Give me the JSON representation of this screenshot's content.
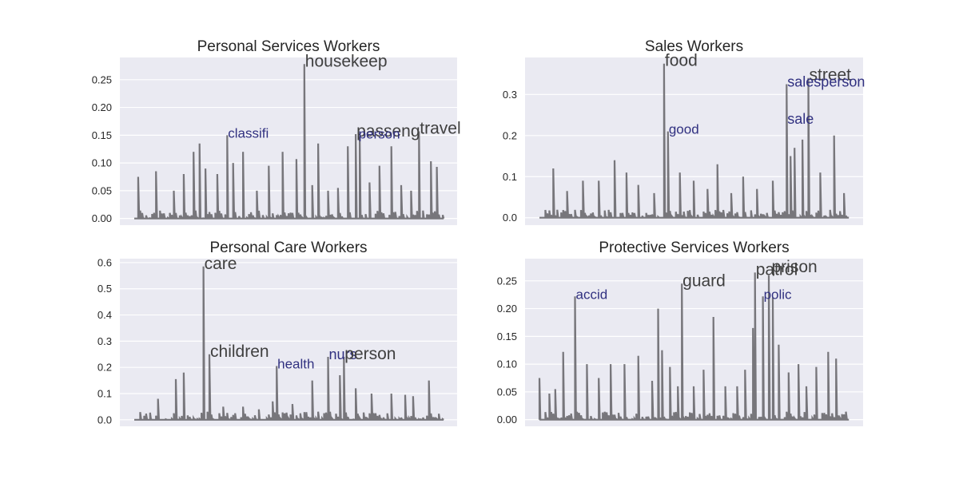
{
  "chart_data": [
    {
      "type": "line",
      "title": "Personal Services Workers",
      "xlabel": "",
      "ylabel": "",
      "ylim": [
        -0.012,
        0.29
      ],
      "yticks": [
        "0.00",
        "0.05",
        "0.10",
        "0.15",
        "0.20",
        "0.25"
      ],
      "series": [
        {
          "color": "#77767b"
        }
      ],
      "peaks": [
        {
          "x": 2,
          "y": 0.075
        },
        {
          "x": 11,
          "y": 0.085
        },
        {
          "x": 20,
          "y": 0.05
        },
        {
          "x": 25,
          "y": 0.08
        },
        {
          "x": 30,
          "y": 0.12
        },
        {
          "x": 33,
          "y": 0.135
        },
        {
          "x": 36,
          "y": 0.09
        },
        {
          "x": 42,
          "y": 0.08
        },
        {
          "x": 47,
          "y": 0.15
        },
        {
          "x": 50,
          "y": 0.1
        },
        {
          "x": 55,
          "y": 0.12
        },
        {
          "x": 62,
          "y": 0.05
        },
        {
          "x": 68,
          "y": 0.095
        },
        {
          "x": 75,
          "y": 0.12
        },
        {
          "x": 82,
          "y": 0.107
        },
        {
          "x": 86,
          "y": 0.278
        },
        {
          "x": 90,
          "y": 0.06
        },
        {
          "x": 93,
          "y": 0.135
        },
        {
          "x": 98,
          "y": 0.05
        },
        {
          "x": 103,
          "y": 0.055
        },
        {
          "x": 108,
          "y": 0.13
        },
        {
          "x": 112,
          "y": 0.152
        },
        {
          "x": 114,
          "y": 0.148
        },
        {
          "x": 119,
          "y": 0.065
        },
        {
          "x": 124,
          "y": 0.095
        },
        {
          "x": 130,
          "y": 0.13
        },
        {
          "x": 135,
          "y": 0.06
        },
        {
          "x": 140,
          "y": 0.05
        },
        {
          "x": 144,
          "y": 0.157
        },
        {
          "x": 150,
          "y": 0.103
        },
        {
          "x": 153,
          "y": 0.093
        }
      ],
      "annotations": [
        {
          "text": "housekeep",
          "x": 86,
          "y": 0.278,
          "style": "dark",
          "size": "large"
        },
        {
          "text": "classifi",
          "x": 47,
          "y": 0.15,
          "style": "blue",
          "size": "small"
        },
        {
          "text": "passeng",
          "x": 112,
          "y": 0.152,
          "style": "dark",
          "size": "large"
        },
        {
          "text": "person",
          "x": 113,
          "y": 0.148,
          "style": "blue",
          "size": "small"
        },
        {
          "text": "travel",
          "x": 144,
          "y": 0.157,
          "style": "dark",
          "size": "large"
        }
      ]
    },
    {
      "type": "line",
      "title": "Sales Workers",
      "xlabel": "",
      "ylabel": "",
      "ylim": [
        -0.018,
        0.39
      ],
      "yticks": [
        "0.0",
        "0.1",
        "0.2",
        "0.3"
      ],
      "series": [
        {
          "color": "#77767b"
        }
      ],
      "peaks": [
        {
          "x": 7,
          "y": 0.12
        },
        {
          "x": 14,
          "y": 0.065
        },
        {
          "x": 22,
          "y": 0.09
        },
        {
          "x": 30,
          "y": 0.09
        },
        {
          "x": 38,
          "y": 0.14
        },
        {
          "x": 44,
          "y": 0.11
        },
        {
          "x": 50,
          "y": 0.08
        },
        {
          "x": 58,
          "y": 0.06
        },
        {
          "x": 63,
          "y": 0.375
        },
        {
          "x": 65,
          "y": 0.21
        },
        {
          "x": 71,
          "y": 0.11
        },
        {
          "x": 78,
          "y": 0.09
        },
        {
          "x": 85,
          "y": 0.07
        },
        {
          "x": 90,
          "y": 0.13
        },
        {
          "x": 97,
          "y": 0.06
        },
        {
          "x": 103,
          "y": 0.1
        },
        {
          "x": 110,
          "y": 0.07
        },
        {
          "x": 118,
          "y": 0.09
        },
        {
          "x": 125,
          "y": 0.325
        },
        {
          "x": 127,
          "y": 0.15
        },
        {
          "x": 129,
          "y": 0.17
        },
        {
          "x": 133,
          "y": 0.19
        },
        {
          "x": 136,
          "y": 0.34
        },
        {
          "x": 142,
          "y": 0.11
        },
        {
          "x": 149,
          "y": 0.2
        },
        {
          "x": 154,
          "y": 0.06
        }
      ],
      "annotations": [
        {
          "text": "food",
          "x": 63,
          "y": 0.375,
          "style": "dark",
          "size": "large"
        },
        {
          "text": "good",
          "x": 65,
          "y": 0.21,
          "style": "blue",
          "size": "small"
        },
        {
          "text": "street",
          "x": 136,
          "y": 0.34,
          "style": "dark",
          "size": "large"
        },
        {
          "text": "salesperson",
          "x": 125,
          "y": 0.325,
          "style": "blue",
          "size": "medium"
        },
        {
          "text": "sale",
          "x": 125,
          "y": 0.235,
          "style": "blue",
          "size": "medium"
        }
      ]
    },
    {
      "type": "line",
      "title": "Personal Care Workers",
      "xlabel": "",
      "ylabel": "",
      "ylim": [
        -0.025,
        0.615
      ],
      "yticks": [
        "0.0",
        "0.1",
        "0.2",
        "0.3",
        "0.4",
        "0.5",
        "0.6"
      ],
      "series": [
        {
          "color": "#77767b"
        }
      ],
      "peaks": [
        {
          "x": 12,
          "y": 0.08
        },
        {
          "x": 21,
          "y": 0.155
        },
        {
          "x": 25,
          "y": 0.18
        },
        {
          "x": 35,
          "y": 0.585
        },
        {
          "x": 38,
          "y": 0.25
        },
        {
          "x": 45,
          "y": 0.05
        },
        {
          "x": 55,
          "y": 0.05
        },
        {
          "x": 63,
          "y": 0.04
        },
        {
          "x": 70,
          "y": 0.07
        },
        {
          "x": 72,
          "y": 0.205
        },
        {
          "x": 80,
          "y": 0.06
        },
        {
          "x": 90,
          "y": 0.15
        },
        {
          "x": 98,
          "y": 0.24
        },
        {
          "x": 104,
          "y": 0.17
        },
        {
          "x": 106,
          "y": 0.24
        },
        {
          "x": 112,
          "y": 0.12
        },
        {
          "x": 120,
          "y": 0.1
        },
        {
          "x": 130,
          "y": 0.1
        },
        {
          "x": 137,
          "y": 0.095
        },
        {
          "x": 141,
          "y": 0.09
        },
        {
          "x": 149,
          "y": 0.15
        }
      ],
      "annotations": [
        {
          "text": "care",
          "x": 35,
          "y": 0.585,
          "style": "dark",
          "size": "large"
        },
        {
          "text": "children",
          "x": 38,
          "y": 0.25,
          "style": "dark",
          "size": "large"
        },
        {
          "text": "health",
          "x": 72,
          "y": 0.205,
          "style": "blue",
          "size": "small"
        },
        {
          "text": "nurs",
          "x": 98,
          "y": 0.24,
          "style": "blue",
          "size": "medium"
        },
        {
          "text": "person",
          "x": 106,
          "y": 0.24,
          "style": "dark",
          "size": "large"
        }
      ]
    },
    {
      "type": "line",
      "title": "Protective Services Workers",
      "xlabel": "",
      "ylabel": "",
      "ylim": [
        -0.012,
        0.29
      ],
      "yticks": [
        "0.00",
        "0.05",
        "0.10",
        "0.15",
        "0.20",
        "0.25"
      ],
      "series": [
        {
          "color": "#77767b"
        }
      ],
      "peaks": [
        {
          "x": 0,
          "y": 0.075
        },
        {
          "x": 5,
          "y": 0.047
        },
        {
          "x": 8,
          "y": 0.055
        },
        {
          "x": 12,
          "y": 0.122
        },
        {
          "x": 18,
          "y": 0.222
        },
        {
          "x": 24,
          "y": 0.1
        },
        {
          "x": 30,
          "y": 0.075
        },
        {
          "x": 36,
          "y": 0.1
        },
        {
          "x": 43,
          "y": 0.1
        },
        {
          "x": 50,
          "y": 0.115
        },
        {
          "x": 57,
          "y": 0.07
        },
        {
          "x": 60,
          "y": 0.2
        },
        {
          "x": 62,
          "y": 0.125
        },
        {
          "x": 66,
          "y": 0.095
        },
        {
          "x": 70,
          "y": 0.06
        },
        {
          "x": 72,
          "y": 0.245
        },
        {
          "x": 78,
          "y": 0.06
        },
        {
          "x": 83,
          "y": 0.09
        },
        {
          "x": 88,
          "y": 0.185
        },
        {
          "x": 94,
          "y": 0.06
        },
        {
          "x": 100,
          "y": 0.06
        },
        {
          "x": 104,
          "y": 0.09
        },
        {
          "x": 108,
          "y": 0.165
        },
        {
          "x": 109,
          "y": 0.265
        },
        {
          "x": 113,
          "y": 0.222
        },
        {
          "x": 116,
          "y": 0.26
        },
        {
          "x": 118,
          "y": 0.22
        },
        {
          "x": 121,
          "y": 0.135
        },
        {
          "x": 126,
          "y": 0.085
        },
        {
          "x": 131,
          "y": 0.1
        },
        {
          "x": 135,
          "y": 0.06
        },
        {
          "x": 140,
          "y": 0.095
        },
        {
          "x": 146,
          "y": 0.122
        },
        {
          "x": 150,
          "y": 0.11
        }
      ],
      "annotations": [
        {
          "text": "accid",
          "x": 18,
          "y": 0.222,
          "style": "blue",
          "size": "small"
        },
        {
          "text": "guard",
          "x": 72,
          "y": 0.245,
          "style": "dark",
          "size": "large"
        },
        {
          "text": "patrol",
          "x": 109,
          "y": 0.265,
          "style": "dark",
          "size": "large"
        },
        {
          "text": "prison",
          "x": 117,
          "y": 0.27,
          "style": "dark",
          "size": "large"
        },
        {
          "text": "polic",
          "x": 113,
          "y": 0.222,
          "style": "blue",
          "size": "small"
        }
      ]
    }
  ]
}
